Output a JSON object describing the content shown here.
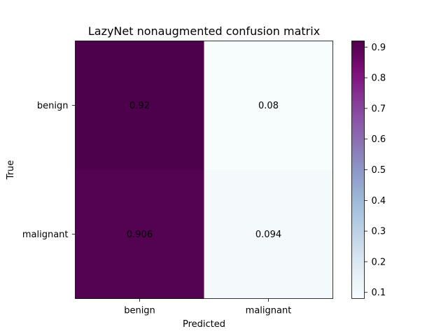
{
  "chart_data": {
    "type": "heatmap",
    "title": "LazyNet nonaugmented confusion matrix",
    "xlabel": "Predicted",
    "ylabel": "True",
    "x_categories": [
      "benign",
      "malignant"
    ],
    "y_categories": [
      "benign",
      "malignant"
    ],
    "values": [
      [
        0.92,
        0.08
      ],
      [
        0.906,
        0.094
      ]
    ],
    "cell_labels": [
      [
        "0.92",
        "0.08"
      ],
      [
        "0.906",
        "0.094"
      ]
    ],
    "colormap": "BuPu",
    "colorbar": {
      "range": [
        0.08,
        0.92
      ],
      "ticks": [
        "0.1",
        "0.2",
        "0.3",
        "0.4",
        "0.5",
        "0.6",
        "0.7",
        "0.8",
        "0.9"
      ]
    },
    "grid": false
  }
}
